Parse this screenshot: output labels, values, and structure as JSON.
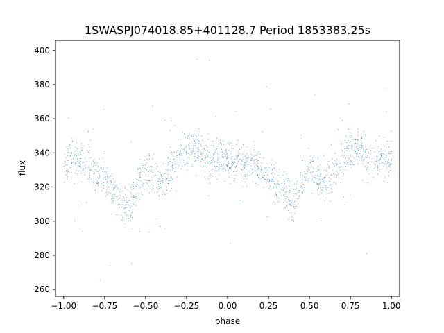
{
  "chart_data": {
    "type": "scatter",
    "title": "1SWASPJ074018.85+401128.7 Period 1853383.25s",
    "xlabel": "phase",
    "ylabel": "flux",
    "xlim": [
      -1.05,
      1.05
    ],
    "ylim": [
      256,
      406
    ],
    "x_ticks": [
      -1.0,
      -0.75,
      -0.5,
      -0.25,
      0.0,
      0.25,
      0.5,
      0.75,
      1.0
    ],
    "x_tick_labels": [
      "−1.00",
      "−0.75",
      "−0.50",
      "−0.25",
      "0.00",
      "0.25",
      "0.50",
      "0.75",
      "1.00"
    ],
    "y_ticks": [
      260,
      280,
      300,
      320,
      340,
      360,
      380,
      400
    ],
    "y_tick_labels": [
      "260",
      "280",
      "300",
      "320",
      "340",
      "360",
      "380",
      "400"
    ],
    "grid": false,
    "legend": "none",
    "marker_color": "#1f77b4",
    "series": [
      {
        "profile_phase": [
          -1.0,
          -0.95,
          -0.9,
          -0.85,
          -0.8,
          -0.75,
          -0.7,
          -0.65,
          -0.6,
          -0.55,
          -0.5,
          -0.45,
          -0.4,
          -0.35,
          -0.3,
          -0.25,
          -0.2,
          -0.15,
          -0.1,
          -0.05,
          0.0,
          0.05,
          0.1,
          0.15,
          0.2,
          0.25,
          0.3,
          0.35,
          0.4,
          0.45,
          0.5,
          0.55,
          0.6,
          0.65,
          0.7,
          0.75,
          0.8,
          0.85,
          0.9,
          0.95,
          1.0
        ],
        "profile_flux": [
          332,
          338,
          336,
          333,
          328,
          326,
          320,
          312,
          308,
          322,
          330,
          326,
          322,
          330,
          338,
          342,
          344,
          340,
          336,
          340,
          334,
          335,
          334,
          332,
          330,
          328,
          322,
          316,
          310,
          322,
          332,
          326,
          322,
          330,
          338,
          342,
          344,
          338,
          334,
          338,
          336
        ],
        "scatter_sd": 9,
        "point_count": 5200
      }
    ]
  }
}
